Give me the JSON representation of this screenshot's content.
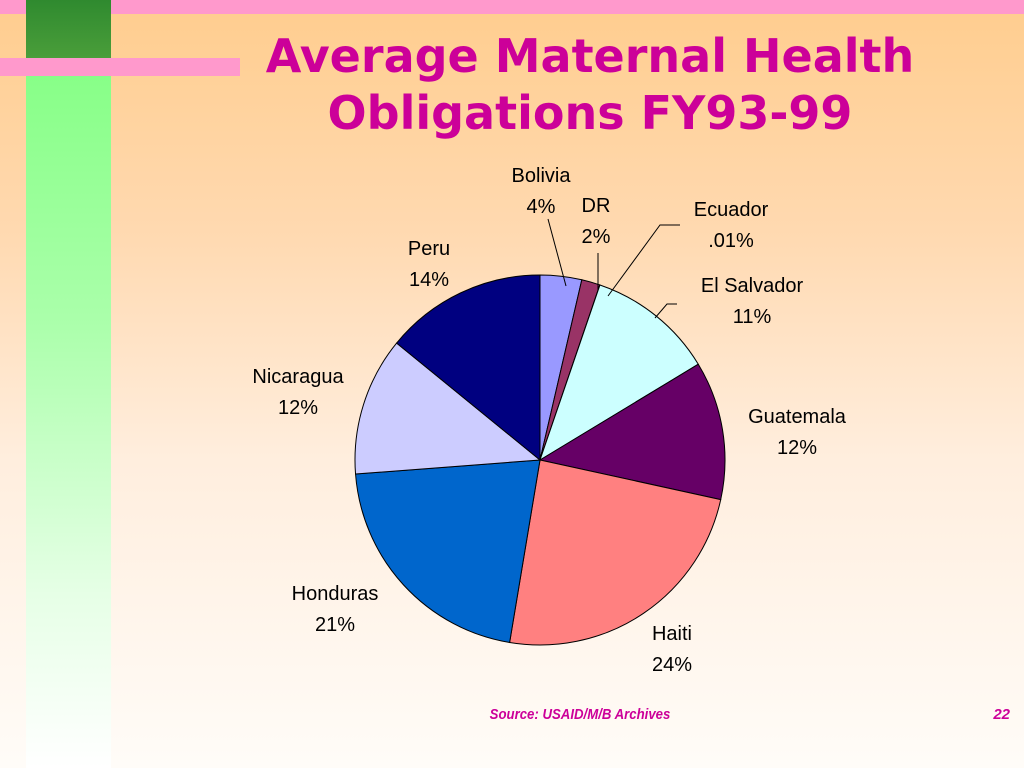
{
  "slide": {
    "title_line1": "Average Maternal Health",
    "title_line2": "Obligations FY93-99",
    "source": "Source:  USAID/M/B Archives",
    "page_number": "22"
  },
  "chart_data": {
    "type": "pie",
    "slices": [
      {
        "name": "Bolivia",
        "label": "4%",
        "value": 3.6,
        "color": "#9999ff"
      },
      {
        "name": "DR",
        "label": "2%",
        "value": 1.6,
        "color": "#993366"
      },
      {
        "name": "Ecuador",
        "label": ".01%",
        "value": 0.01,
        "color": "#ffffcc"
      },
      {
        "name": "El Salvador",
        "label": "11%",
        "value": 11,
        "color": "#ccffff"
      },
      {
        "name": "Guatemala",
        "label": "12%",
        "value": 12,
        "color": "#660066"
      },
      {
        "name": "Haiti",
        "label": "24%",
        "value": 24,
        "color": "#ff8080"
      },
      {
        "name": "Honduras",
        "label": "21%",
        "value": 21,
        "color": "#0066cc"
      },
      {
        "name": "Nicaragua",
        "label": "12%",
        "value": 12,
        "color": "#ccccff"
      },
      {
        "name": "Peru",
        "label": "14%",
        "value": 14,
        "color": "#000080"
      }
    ]
  }
}
